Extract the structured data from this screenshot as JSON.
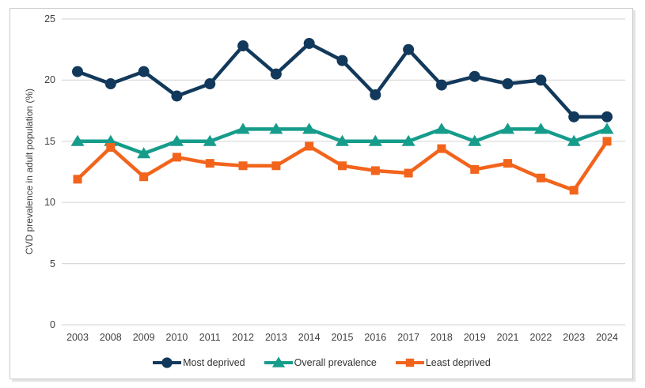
{
  "chart_data": {
    "type": "line",
    "title": "",
    "xlabel": "",
    "ylabel": "CVD prevalence in adult population (%)",
    "ylim": [
      0,
      25
    ],
    "yticks": [
      0,
      5,
      10,
      15,
      20,
      25
    ],
    "grid": "horizontal",
    "grid_color": "#d9d9d9",
    "legend_position": "bottom-center",
    "categories": [
      "2003",
      "2008",
      "2009",
      "2010",
      "2011",
      "2012",
      "2013",
      "2014",
      "2015",
      "2016",
      "2017",
      "2018",
      "2019",
      "2021",
      "2022",
      "2023",
      "2024"
    ],
    "series": [
      {
        "name": "Most deprived",
        "color": "#12395b",
        "marker": "circle",
        "values": [
          20.7,
          19.7,
          20.7,
          18.7,
          19.7,
          22.8,
          20.5,
          23.0,
          21.6,
          18.8,
          22.5,
          19.6,
          20.3,
          19.7,
          20.0,
          17.0,
          17.0
        ]
      },
      {
        "name": "Overall prevalence",
        "color": "#169c8b",
        "marker": "triangle",
        "values": [
          15,
          15,
          14,
          15,
          15,
          16,
          16,
          16,
          15,
          15,
          15,
          16,
          15,
          16,
          16,
          15,
          16
        ]
      },
      {
        "name": "Least deprived",
        "color": "#f2641c",
        "marker": "square",
        "values": [
          11.9,
          14.5,
          12.1,
          13.7,
          13.2,
          13.0,
          13.0,
          14.6,
          13.0,
          12.6,
          12.4,
          14.4,
          12.7,
          13.2,
          12.0,
          11.0,
          15.0
        ]
      }
    ]
  }
}
